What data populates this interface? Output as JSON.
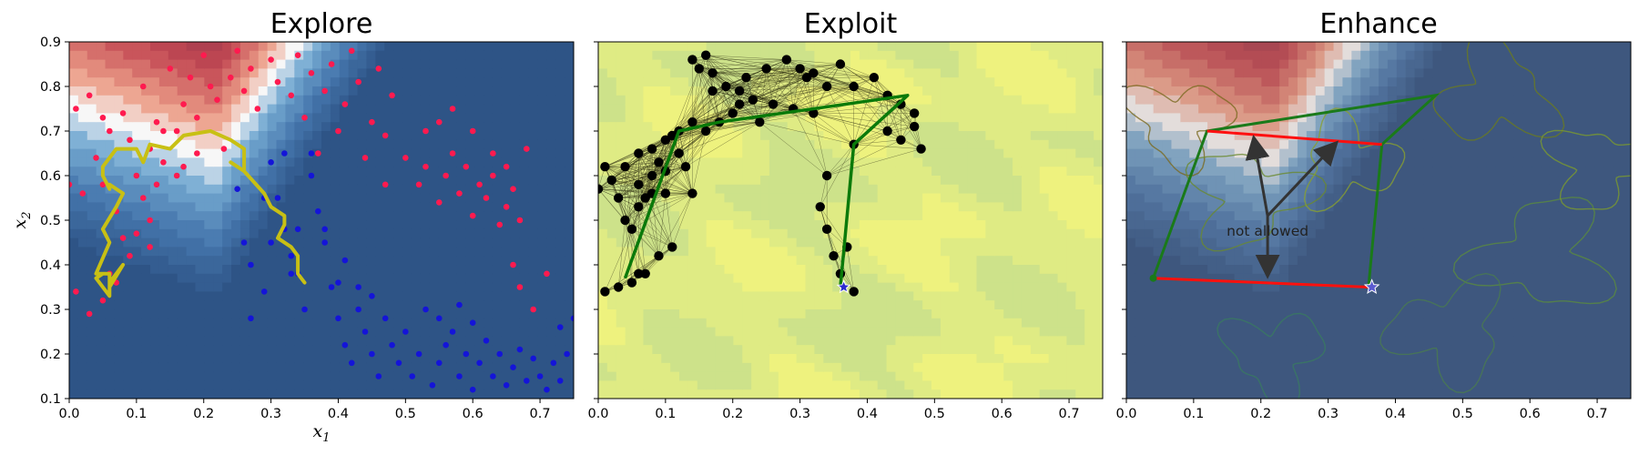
{
  "chart_data": [
    {
      "type": "contour-scatter",
      "title": "Explore",
      "xlabel_base": "x",
      "xlabel_sub": "1",
      "ylabel_base": "x",
      "ylabel_sub": "2",
      "xlim": [
        0.0,
        0.75
      ],
      "ylim": [
        0.1,
        0.9
      ],
      "xticks": [
        "0.0",
        "0.1",
        "0.2",
        "0.3",
        "0.4",
        "0.5",
        "0.6",
        "0.7"
      ],
      "yticks": [
        "0.1",
        "0.2",
        "0.3",
        "0.4",
        "0.5",
        "0.6",
        "0.7",
        "0.8",
        "0.9"
      ],
      "colors": {
        "class_red": "#ff1a4f",
        "class_blue": "#1414d8",
        "path": "#c8c014"
      },
      "red_points": [
        [
          0.01,
          0.75
        ],
        [
          0.03,
          0.78
        ],
        [
          0.05,
          0.73
        ],
        [
          0.06,
          0.7
        ],
        [
          0.08,
          0.74
        ],
        [
          0.09,
          0.68
        ],
        [
          0.11,
          0.8
        ],
        [
          0.12,
          0.66
        ],
        [
          0.13,
          0.72
        ],
        [
          0.15,
          0.84
        ],
        [
          0.16,
          0.7
        ],
        [
          0.17,
          0.76
        ],
        [
          0.18,
          0.82
        ],
        [
          0.19,
          0.73
        ],
        [
          0.2,
          0.87
        ],
        [
          0.21,
          0.8
        ],
        [
          0.22,
          0.77
        ],
        [
          0.24,
          0.82
        ],
        [
          0.25,
          0.88
        ],
        [
          0.26,
          0.79
        ],
        [
          0.27,
          0.84
        ],
        [
          0.28,
          0.75
        ],
        [
          0.3,
          0.86
        ],
        [
          0.31,
          0.81
        ],
        [
          0.33,
          0.78
        ],
        [
          0.34,
          0.87
        ],
        [
          0.35,
          0.73
        ],
        [
          0.36,
          0.83
        ],
        [
          0.38,
          0.79
        ],
        [
          0.39,
          0.85
        ],
        [
          0.41,
          0.76
        ],
        [
          0.42,
          0.88
        ],
        [
          0.43,
          0.81
        ],
        [
          0.45,
          0.72
        ],
        [
          0.46,
          0.84
        ],
        [
          0.47,
          0.69
        ],
        [
          0.48,
          0.78
        ],
        [
          0.5,
          0.64
        ],
        [
          0.52,
          0.58
        ],
        [
          0.53,
          0.62
        ],
        [
          0.55,
          0.54
        ],
        [
          0.56,
          0.6
        ],
        [
          0.57,
          0.65
        ],
        [
          0.58,
          0.56
        ],
        [
          0.59,
          0.62
        ],
        [
          0.6,
          0.51
        ],
        [
          0.61,
          0.58
        ],
        [
          0.62,
          0.55
        ],
        [
          0.63,
          0.6
        ],
        [
          0.64,
          0.49
        ],
        [
          0.65,
          0.53
        ],
        [
          0.66,
          0.57
        ],
        [
          0.67,
          0.5
        ],
        [
          0.1,
          0.6
        ],
        [
          0.11,
          0.55
        ],
        [
          0.12,
          0.5
        ],
        [
          0.13,
          0.58
        ],
        [
          0.14,
          0.63
        ],
        [
          0.02,
          0.56
        ],
        [
          0.0,
          0.58
        ],
        [
          0.04,
          0.64
        ],
        [
          0.05,
          0.58
        ],
        [
          0.07,
          0.52
        ],
        [
          0.08,
          0.46
        ],
        [
          0.09,
          0.42
        ],
        [
          0.06,
          0.38
        ],
        [
          0.05,
          0.32
        ],
        [
          0.01,
          0.34
        ],
        [
          0.03,
          0.29
        ],
        [
          0.07,
          0.36
        ],
        [
          0.12,
          0.44
        ],
        [
          0.16,
          0.6
        ],
        [
          0.17,
          0.62
        ],
        [
          0.19,
          0.65
        ],
        [
          0.14,
          0.7
        ],
        [
          0.1,
          0.47
        ],
        [
          0.23,
          0.66
        ],
        [
          0.44,
          0.64
        ],
        [
          0.47,
          0.58
        ],
        [
          0.37,
          0.65
        ],
        [
          0.4,
          0.7
        ],
        [
          0.53,
          0.7
        ],
        [
          0.55,
          0.72
        ],
        [
          0.57,
          0.75
        ],
        [
          0.6,
          0.7
        ],
        [
          0.63,
          0.65
        ],
        [
          0.65,
          0.62
        ],
        [
          0.68,
          0.66
        ],
        [
          0.66,
          0.4
        ],
        [
          0.67,
          0.35
        ],
        [
          0.69,
          0.3
        ],
        [
          0.71,
          0.38
        ]
      ],
      "blue_points": [
        [
          0.25,
          0.57
        ],
        [
          0.26,
          0.45
        ],
        [
          0.27,
          0.4
        ],
        [
          0.29,
          0.34
        ],
        [
          0.3,
          0.63
        ],
        [
          0.31,
          0.55
        ],
        [
          0.32,
          0.48
        ],
        [
          0.33,
          0.42
        ],
        [
          0.34,
          0.38
        ],
        [
          0.35,
          0.3
        ],
        [
          0.36,
          0.6
        ],
        [
          0.37,
          0.52
        ],
        [
          0.38,
          0.45
        ],
        [
          0.39,
          0.35
        ],
        [
          0.4,
          0.28
        ],
        [
          0.41,
          0.22
        ],
        [
          0.42,
          0.18
        ],
        [
          0.43,
          0.3
        ],
        [
          0.44,
          0.25
        ],
        [
          0.45,
          0.2
        ],
        [
          0.46,
          0.15
        ],
        [
          0.47,
          0.28
        ],
        [
          0.48,
          0.22
        ],
        [
          0.49,
          0.18
        ],
        [
          0.5,
          0.25
        ],
        [
          0.51,
          0.15
        ],
        [
          0.52,
          0.2
        ],
        [
          0.53,
          0.3
        ],
        [
          0.54,
          0.13
        ],
        [
          0.55,
          0.18
        ],
        [
          0.56,
          0.22
        ],
        [
          0.57,
          0.25
        ],
        [
          0.58,
          0.15
        ],
        [
          0.59,
          0.2
        ],
        [
          0.6,
          0.12
        ],
        [
          0.61,
          0.18
        ],
        [
          0.62,
          0.23
        ],
        [
          0.63,
          0.15
        ],
        [
          0.64,
          0.2
        ],
        [
          0.65,
          0.13
        ],
        [
          0.66,
          0.17
        ],
        [
          0.67,
          0.21
        ],
        [
          0.68,
          0.14
        ],
        [
          0.69,
          0.19
        ],
        [
          0.7,
          0.15
        ],
        [
          0.71,
          0.12
        ],
        [
          0.72,
          0.18
        ],
        [
          0.73,
          0.14
        ],
        [
          0.74,
          0.2
        ],
        [
          0.75,
          0.28
        ],
        [
          0.73,
          0.26
        ],
        [
          0.6,
          0.27
        ],
        [
          0.58,
          0.31
        ],
        [
          0.55,
          0.28
        ],
        [
          0.45,
          0.33
        ],
        [
          0.4,
          0.36
        ],
        [
          0.32,
          0.65
        ],
        [
          0.29,
          0.55
        ],
        [
          0.36,
          0.65
        ],
        [
          0.3,
          0.45
        ],
        [
          0.27,
          0.28
        ],
        [
          0.34,
          0.48
        ],
        [
          0.38,
          0.48
        ],
        [
          0.33,
          0.38
        ],
        [
          0.41,
          0.41
        ],
        [
          0.43,
          0.35
        ]
      ],
      "path": [
        [
          0.05,
          0.38
        ],
        [
          0.04,
          0.37
        ],
        [
          0.06,
          0.33
        ],
        [
          0.06,
          0.38
        ],
        [
          0.06,
          0.35
        ],
        [
          0.08,
          0.4
        ],
        [
          0.06,
          0.36
        ],
        [
          0.06,
          0.38
        ],
        [
          0.04,
          0.38
        ],
        [
          0.06,
          0.45
        ],
        [
          0.05,
          0.48
        ],
        [
          0.07,
          0.53
        ],
        [
          0.08,
          0.56
        ],
        [
          0.06,
          0.58
        ],
        [
          0.06,
          0.57
        ],
        [
          0.05,
          0.6
        ],
        [
          0.05,
          0.62
        ],
        [
          0.07,
          0.66
        ],
        [
          0.1,
          0.66
        ],
        [
          0.11,
          0.63
        ],
        [
          0.12,
          0.67
        ],
        [
          0.15,
          0.66
        ],
        [
          0.17,
          0.69
        ],
        [
          0.21,
          0.7
        ],
        [
          0.24,
          0.68
        ],
        [
          0.26,
          0.66
        ],
        [
          0.26,
          0.63
        ],
        [
          0.26,
          0.61
        ],
        [
          0.24,
          0.63
        ],
        [
          0.26,
          0.61
        ],
        [
          0.29,
          0.56
        ],
        [
          0.3,
          0.53
        ],
        [
          0.32,
          0.51
        ],
        [
          0.32,
          0.49
        ],
        [
          0.31,
          0.46
        ],
        [
          0.33,
          0.44
        ],
        [
          0.34,
          0.42
        ],
        [
          0.34,
          0.38
        ],
        [
          0.35,
          0.36
        ]
      ]
    },
    {
      "type": "contour-graph",
      "title": "Exploit",
      "xlim": [
        0.0,
        0.75
      ],
      "ylim": [
        0.1,
        0.9
      ],
      "xticks": [
        "0.0",
        "0.1",
        "0.2",
        "0.3",
        "0.4",
        "0.5",
        "0.6",
        "0.7"
      ],
      "colors": {
        "nodes": "#000000",
        "path": "#0a7a0a",
        "start": "#2a2ad0"
      },
      "nodes": [
        [
          0.01,
          0.34
        ],
        [
          0.03,
          0.35
        ],
        [
          0.05,
          0.36
        ],
        [
          0.06,
          0.38
        ],
        [
          0.07,
          0.38
        ],
        [
          0.09,
          0.42
        ],
        [
          0.11,
          0.44
        ],
        [
          0.05,
          0.48
        ],
        [
          0.04,
          0.5
        ],
        [
          0.06,
          0.53
        ],
        [
          0.03,
          0.55
        ],
        [
          0.07,
          0.55
        ],
        [
          0.08,
          0.56
        ],
        [
          0.1,
          0.56
        ],
        [
          0.0,
          0.57
        ],
        [
          0.02,
          0.59
        ],
        [
          0.06,
          0.58
        ],
        [
          0.08,
          0.6
        ],
        [
          0.1,
          0.61
        ],
        [
          0.14,
          0.56
        ],
        [
          0.01,
          0.62
        ],
        [
          0.04,
          0.62
        ],
        [
          0.06,
          0.65
        ],
        [
          0.08,
          0.66
        ],
        [
          0.1,
          0.68
        ],
        [
          0.13,
          0.62
        ],
        [
          0.12,
          0.7
        ],
        [
          0.14,
          0.72
        ],
        [
          0.16,
          0.7
        ],
        [
          0.18,
          0.72
        ],
        [
          0.2,
          0.74
        ],
        [
          0.21,
          0.76
        ],
        [
          0.23,
          0.77
        ],
        [
          0.17,
          0.79
        ],
        [
          0.19,
          0.8
        ],
        [
          0.21,
          0.79
        ],
        [
          0.22,
          0.82
        ],
        [
          0.17,
          0.83
        ],
        [
          0.15,
          0.84
        ],
        [
          0.14,
          0.86
        ],
        [
          0.16,
          0.87
        ],
        [
          0.25,
          0.84
        ],
        [
          0.28,
          0.86
        ],
        [
          0.3,
          0.84
        ],
        [
          0.31,
          0.82
        ],
        [
          0.32,
          0.83
        ],
        [
          0.34,
          0.8
        ],
        [
          0.36,
          0.85
        ],
        [
          0.38,
          0.8
        ],
        [
          0.41,
          0.82
        ],
        [
          0.43,
          0.78
        ],
        [
          0.45,
          0.76
        ],
        [
          0.47,
          0.74
        ],
        [
          0.43,
          0.7
        ],
        [
          0.45,
          0.68
        ],
        [
          0.47,
          0.71
        ],
        [
          0.48,
          0.66
        ],
        [
          0.38,
          0.67
        ],
        [
          0.34,
          0.6
        ],
        [
          0.33,
          0.53
        ],
        [
          0.34,
          0.48
        ],
        [
          0.35,
          0.42
        ],
        [
          0.36,
          0.38
        ],
        [
          0.38,
          0.34
        ],
        [
          0.37,
          0.44
        ],
        [
          0.26,
          0.76
        ],
        [
          0.29,
          0.75
        ],
        [
          0.32,
          0.74
        ],
        [
          0.24,
          0.72
        ],
        [
          0.11,
          0.69
        ],
        [
          0.12,
          0.65
        ],
        [
          0.09,
          0.63
        ]
      ],
      "path": [
        [
          0.04,
          0.37
        ],
        [
          0.12,
          0.7
        ],
        [
          0.18,
          0.72
        ],
        [
          0.46,
          0.78
        ],
        [
          0.38,
          0.67
        ],
        [
          0.36,
          0.35
        ]
      ],
      "start": [
        0.365,
        0.35
      ]
    },
    {
      "type": "contour-polygon",
      "title": "Enhance",
      "xlim": [
        0.0,
        0.75
      ],
      "ylim": [
        0.1,
        0.9
      ],
      "xticks": [
        "0.0",
        "0.1",
        "0.2",
        "0.3",
        "0.4",
        "0.5",
        "0.6",
        "0.7"
      ],
      "annotation": "not allowed",
      "colors": {
        "polygon": "#1a7a1a",
        "segments": "#ff1010",
        "arrows": "#333333",
        "start": "#5a5ad0"
      },
      "polygon": [
        [
          0.04,
          0.37
        ],
        [
          0.12,
          0.7
        ],
        [
          0.46,
          0.78
        ],
        [
          0.38,
          0.67
        ],
        [
          0.36,
          0.35
        ]
      ],
      "red_segments": [
        [
          [
            0.04,
            0.37
          ],
          [
            0.36,
            0.35
          ]
        ],
        [
          [
            0.12,
            0.7
          ],
          [
            0.38,
            0.67
          ]
        ]
      ],
      "arrow_origin": [
        0.21,
        0.51
      ],
      "arrow_targets": [
        [
          0.19,
          0.68
        ],
        [
          0.31,
          0.67
        ],
        [
          0.21,
          0.38
        ]
      ],
      "start": [
        0.365,
        0.35
      ],
      "start_dot": [
        0.04,
        0.37
      ]
    }
  ]
}
